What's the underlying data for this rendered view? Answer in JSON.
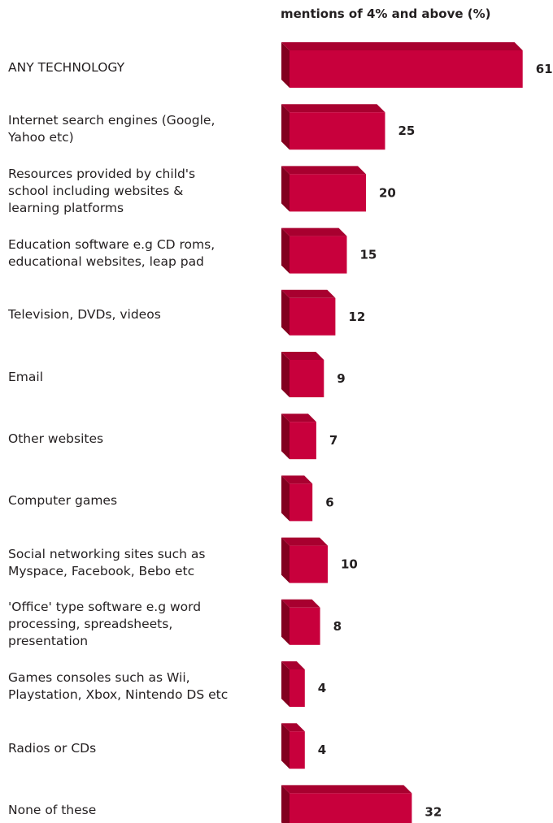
{
  "chart_data": {
    "type": "bar",
    "orientation": "horizontal",
    "title": "mentions of 4% and above (%)",
    "categories": [
      "ANY TECHNOLOGY",
      "Internet search engines (Google,\nYahoo etc)",
      "Resources provided by child's\nschool including websites &\nlearning platforms",
      "Education software e.g CD roms,\neducational websites, leap pad",
      "Television, DVDs, videos",
      "Email",
      "Other websites",
      "Computer games",
      "Social networking sites such as\nMyspace, Facebook, Bebo etc",
      "'Office' type software e.g word\nprocessing, spreadsheets,\npresentation",
      "Games consoles such as Wii,\nPlaystation, Xbox, Nintendo DS etc",
      "Radios or CDs",
      "None of these"
    ],
    "values": [
      61,
      25,
      20,
      15,
      12,
      9,
      7,
      6,
      10,
      8,
      4,
      4,
      32
    ],
    "bar_style": "3d",
    "grid": false,
    "legend": "none"
  },
  "colors": {
    "bar_front": "#c8003c",
    "bar_top": "#a8002f",
    "bar_side": "#82001f",
    "text": "#231f20"
  }
}
